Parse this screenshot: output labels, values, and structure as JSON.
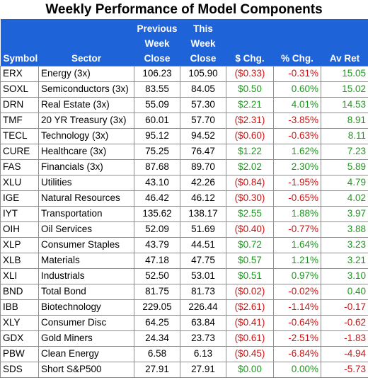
{
  "title": "Weekly Performance of Model Components",
  "headers": {
    "symbol": "Symbol",
    "sector": "Sector",
    "prev_close": [
      "Previous",
      "Week",
      "Close"
    ],
    "this_close": [
      "This",
      "Week",
      "Close"
    ],
    "chg_dollar": "$ Chg.",
    "chg_pct": "% Chg.",
    "av_ret": "Av Ret"
  },
  "rows": [
    {
      "symbol": "ERX",
      "sector": "Energy (3x)",
      "prev": "106.23",
      "cur": "105.90",
      "chg": "($0.33)",
      "pct": "-0.31%",
      "avret": "15.05",
      "chg_dir": "neg",
      "avret_dir": "pos"
    },
    {
      "symbol": "SOXL",
      "sector": "Semiconductors (3x)",
      "prev": "83.55",
      "cur": "84.05",
      "chg": "$0.50",
      "pct": "0.60%",
      "avret": "15.02",
      "chg_dir": "pos",
      "avret_dir": "pos"
    },
    {
      "symbol": "DRN",
      "sector": "Real Estate (3x)",
      "prev": "55.09",
      "cur": "57.30",
      "chg": "$2.21",
      "pct": "4.01%",
      "avret": "14.53",
      "chg_dir": "pos",
      "avret_dir": "pos"
    },
    {
      "symbol": "TMF",
      "sector": "20 YR Treasury (3x)",
      "prev": "60.01",
      "cur": "57.70",
      "chg": "($2.31)",
      "pct": "-3.85%",
      "avret": "8.91",
      "chg_dir": "neg",
      "avret_dir": "pos"
    },
    {
      "symbol": "TECL",
      "sector": "Technology (3x)",
      "prev": "95.12",
      "cur": "94.52",
      "chg": "($0.60)",
      "pct": "-0.63%",
      "avret": "8.11",
      "chg_dir": "neg",
      "avret_dir": "pos"
    },
    {
      "symbol": "CURE",
      "sector": "Healthcare (3x)",
      "prev": "75.25",
      "cur": "76.47",
      "chg": "$1.22",
      "pct": "1.62%",
      "avret": "7.23",
      "chg_dir": "pos",
      "avret_dir": "pos"
    },
    {
      "symbol": "FAS",
      "sector": "Financials (3x)",
      "prev": "87.68",
      "cur": "89.70",
      "chg": "$2.02",
      "pct": "2.30%",
      "avret": "5.89",
      "chg_dir": "pos",
      "avret_dir": "pos"
    },
    {
      "symbol": "XLU",
      "sector": "Utilities",
      "prev": "43.10",
      "cur": "42.26",
      "chg": "($0.84)",
      "pct": "-1.95%",
      "avret": "4.79",
      "chg_dir": "neg",
      "avret_dir": "pos"
    },
    {
      "symbol": "IGE",
      "sector": "Natural Resources",
      "prev": "46.42",
      "cur": "46.12",
      "chg": "($0.30)",
      "pct": "-0.65%",
      "avret": "4.02",
      "chg_dir": "neg",
      "avret_dir": "pos"
    },
    {
      "symbol": "IYT",
      "sector": "Transportation",
      "prev": "135.62",
      "cur": "138.17",
      "chg": "$2.55",
      "pct": "1.88%",
      "avret": "3.97",
      "chg_dir": "pos",
      "avret_dir": "pos"
    },
    {
      "symbol": "OIH",
      "sector": "Oil Services",
      "prev": "52.09",
      "cur": "51.69",
      "chg": "($0.40)",
      "pct": "-0.77%",
      "avret": "3.88",
      "chg_dir": "neg",
      "avret_dir": "pos"
    },
    {
      "symbol": "XLP",
      "sector": "Consumer Staples",
      "prev": "43.79",
      "cur": "44.51",
      "chg": "$0.72",
      "pct": "1.64%",
      "avret": "3.23",
      "chg_dir": "pos",
      "avret_dir": "pos"
    },
    {
      "symbol": "XLB",
      "sector": "Materials",
      "prev": "47.18",
      "cur": "47.75",
      "chg": "$0.57",
      "pct": "1.21%",
      "avret": "3.21",
      "chg_dir": "pos",
      "avret_dir": "pos"
    },
    {
      "symbol": "XLI",
      "sector": "Industrials",
      "prev": "52.50",
      "cur": "53.01",
      "chg": "$0.51",
      "pct": "0.97%",
      "avret": "3.10",
      "chg_dir": "pos",
      "avret_dir": "pos"
    },
    {
      "symbol": "BND",
      "sector": "Total Bond",
      "prev": "81.75",
      "cur": "81.73",
      "chg": "($0.02)",
      "pct": "-0.02%",
      "avret": "0.40",
      "chg_dir": "neg",
      "avret_dir": "pos"
    },
    {
      "symbol": "IBB",
      "sector": "Biotechnology",
      "prev": "229.05",
      "cur": "226.44",
      "chg": "($2.61)",
      "pct": "-1.14%",
      "avret": "-0.17",
      "chg_dir": "neg",
      "avret_dir": "neg"
    },
    {
      "symbol": "XLY",
      "sector": "Consumer Disc",
      "prev": "64.25",
      "cur": "63.84",
      "chg": "($0.41)",
      "pct": "-0.64%",
      "avret": "-0.62",
      "chg_dir": "neg",
      "avret_dir": "neg"
    },
    {
      "symbol": "GDX",
      "sector": "Gold Miners",
      "prev": "24.34",
      "cur": "23.73",
      "chg": "($0.61)",
      "pct": "-2.51%",
      "avret": "-1.83",
      "chg_dir": "neg",
      "avret_dir": "neg"
    },
    {
      "symbol": "PBW",
      "sector": "Clean Energy",
      "prev": "6.58",
      "cur": "6.13",
      "chg": "($0.45)",
      "pct": "-6.84%",
      "avret": "-4.94",
      "chg_dir": "neg",
      "avret_dir": "neg"
    },
    {
      "symbol": "SDS",
      "sector": "Short S&P500",
      "prev": "27.91",
      "cur": "27.91",
      "chg": "$0.00",
      "pct": "0.00%",
      "avret": "-5.73",
      "chg_dir": "pos",
      "avret_dir": "neg"
    }
  ],
  "colors": {
    "header_bg": "#1e63d8",
    "positive": "#1a9a1a",
    "negative": "#cc1414",
    "border": "#8e8e8e"
  }
}
